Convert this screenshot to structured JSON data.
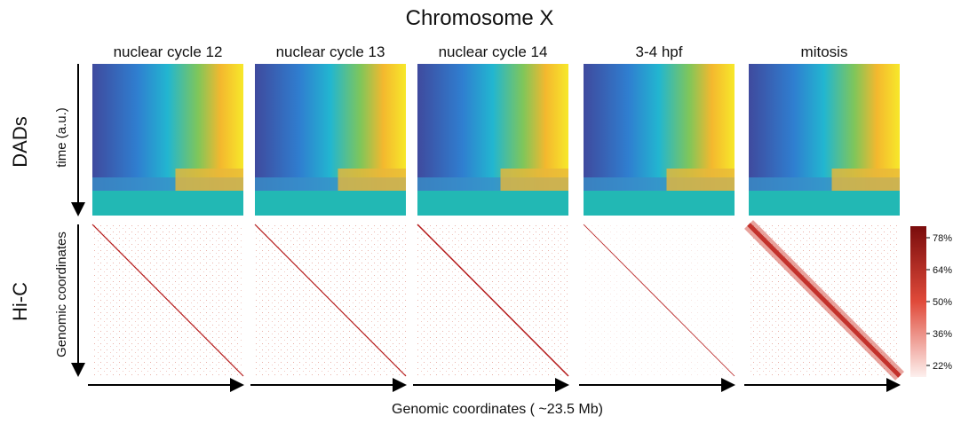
{
  "figure": {
    "title": "Chromosome X",
    "columns": [
      "nuclear cycle 12",
      "nuclear cycle 13",
      "nuclear cycle 14",
      "3-4 hpf",
      "mitosis"
    ],
    "rows": [
      {
        "label": "DADs",
        "axis_label": "time (a.u.)"
      },
      {
        "label": "Hi-C",
        "axis_label": "Genomic coordinates"
      }
    ],
    "x_axis_label": "Genomic coordinates ( ~23.5 Mb)",
    "colorbar": {
      "ticks": [
        "78%",
        "64%",
        "50%",
        "36%",
        "22%"
      ]
    }
  }
}
